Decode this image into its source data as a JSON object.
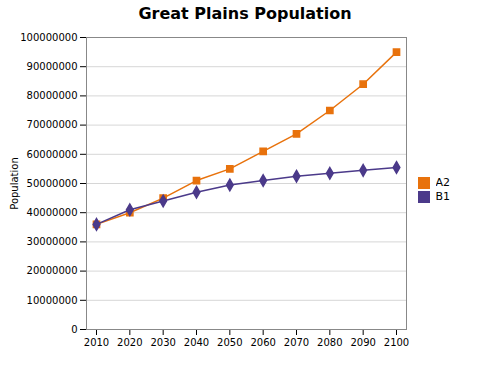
{
  "chart_data": {
    "type": "line",
    "title": "Great Plains Population",
    "ylabel": "Population",
    "x": [
      2010,
      2020,
      2030,
      2040,
      2050,
      2060,
      2070,
      2080,
      2090,
      2100
    ],
    "series": [
      {
        "name": "A2",
        "color": "#E8720C",
        "marker": "square",
        "values": [
          36000000,
          40000000,
          45000000,
          51000000,
          55000000,
          61000000,
          67000000,
          75000000,
          84000000,
          95000000
        ]
      },
      {
        "name": "B1",
        "color": "#4B3A8A",
        "marker": "diamond",
        "values": [
          36000000,
          41000000,
          44000000,
          47000000,
          49500000,
          51000000,
          52500000,
          53500000,
          54500000,
          55500000
        ]
      }
    ],
    "xlim": [
      2007,
      2103
    ],
    "xticks": [
      2010,
      2020,
      2030,
      2040,
      2050,
      2060,
      2070,
      2080,
      2090,
      2100
    ],
    "ylim": [
      0,
      100000000
    ],
    "yticks": [
      0,
      10000000,
      20000000,
      30000000,
      40000000,
      50000000,
      60000000,
      70000000,
      80000000,
      90000000,
      100000000
    ],
    "grid": true,
    "legend": "right"
  }
}
